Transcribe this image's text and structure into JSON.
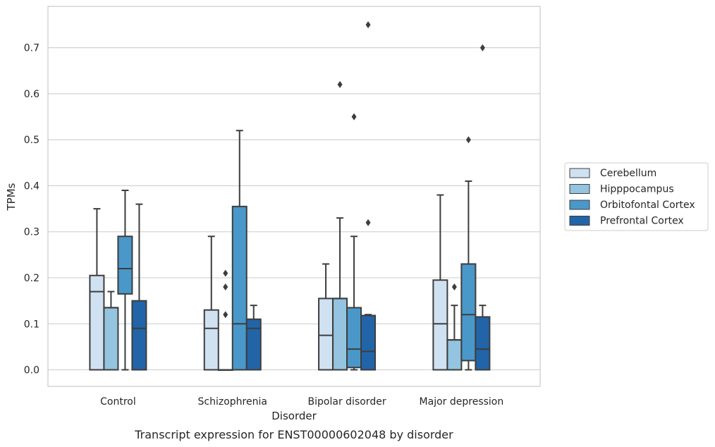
{
  "caption": "Transcript expression for ENST00000602048 by disorder",
  "chart_data": {
    "type": "boxplot",
    "xlabel": "Disorder",
    "ylabel": "TPMs",
    "ylim": [
      -0.036,
      0.79
    ],
    "yticks": [
      0.0,
      0.1,
      0.2,
      0.3,
      0.4,
      0.5,
      0.6,
      0.7
    ],
    "ytick_labels": [
      "0.0",
      "0.1",
      "0.2",
      "0.3",
      "0.4",
      "0.5",
      "0.6",
      "0.7"
    ],
    "grid": "horizontal",
    "legend_position": "right",
    "categories": [
      "Control",
      "Schizophrenia",
      "Bipolar disorder",
      "Major depression"
    ],
    "series": [
      {
        "name": "Cerebellum",
        "color": "#d0e1f2",
        "boxes": [
          {
            "whislo": 0.0,
            "q1": 0.0,
            "med": 0.17,
            "q3": 0.205,
            "whishi": 0.35,
            "fliers": []
          },
          {
            "whislo": 0.0,
            "q1": 0.0,
            "med": 0.09,
            "q3": 0.13,
            "whishi": 0.29,
            "fliers": []
          },
          {
            "whislo": 0.0,
            "q1": 0.0,
            "med": 0.075,
            "q3": 0.155,
            "whishi": 0.23,
            "fliers": []
          },
          {
            "whislo": 0.0,
            "q1": 0.0,
            "med": 0.1,
            "q3": 0.195,
            "whishi": 0.38,
            "fliers": []
          }
        ]
      },
      {
        "name": "Hipppocampus",
        "color": "#94c4df",
        "boxes": [
          {
            "whislo": 0.0,
            "q1": 0.0,
            "med": 0.135,
            "q3": 0.135,
            "whishi": 0.17,
            "fliers": []
          },
          {
            "whislo": 0.0,
            "q1": 0.0,
            "med": 0.0,
            "q3": 0.0,
            "whishi": 0.0,
            "fliers": [
              0.12,
              0.18,
              0.21
            ]
          },
          {
            "whislo": 0.0,
            "q1": 0.0,
            "med": 0.155,
            "q3": 0.155,
            "whishi": 0.33,
            "fliers": [
              0.62
            ]
          },
          {
            "whislo": 0.0,
            "q1": 0.0,
            "med": 0.065,
            "q3": 0.065,
            "whishi": 0.14,
            "fliers": [
              0.18
            ]
          }
        ]
      },
      {
        "name": "Orbitofontal Cortex",
        "color": "#4a98c9",
        "boxes": [
          {
            "whislo": 0.0,
            "q1": 0.165,
            "med": 0.22,
            "q3": 0.29,
            "whishi": 0.39,
            "fliers": []
          },
          {
            "whislo": 0.0,
            "q1": 0.0,
            "med": 0.1,
            "q3": 0.355,
            "whishi": 0.52,
            "fliers": []
          },
          {
            "whislo": 0.0,
            "q1": 0.005,
            "med": 0.045,
            "q3": 0.135,
            "whishi": 0.29,
            "fliers": [
              0.55
            ]
          },
          {
            "whislo": 0.0,
            "q1": 0.02,
            "med": 0.12,
            "q3": 0.23,
            "whishi": 0.41,
            "fliers": [
              0.5
            ]
          }
        ]
      },
      {
        "name": "Prefrontal Cortex",
        "color": "#2264a8",
        "boxes": [
          {
            "whislo": 0.0,
            "q1": 0.0,
            "med": 0.09,
            "q3": 0.15,
            "whishi": 0.36,
            "fliers": []
          },
          {
            "whislo": 0.0,
            "q1": 0.0,
            "med": 0.09,
            "q3": 0.11,
            "whishi": 0.14,
            "fliers": []
          },
          {
            "whislo": 0.0,
            "q1": 0.0,
            "med": 0.04,
            "q3": 0.118,
            "whishi": 0.12,
            "fliers": [
              0.32,
              0.75
            ]
          },
          {
            "whislo": 0.0,
            "q1": 0.0,
            "med": 0.045,
            "q3": 0.115,
            "whishi": 0.14,
            "fliers": [
              0.7
            ]
          }
        ]
      }
    ]
  }
}
